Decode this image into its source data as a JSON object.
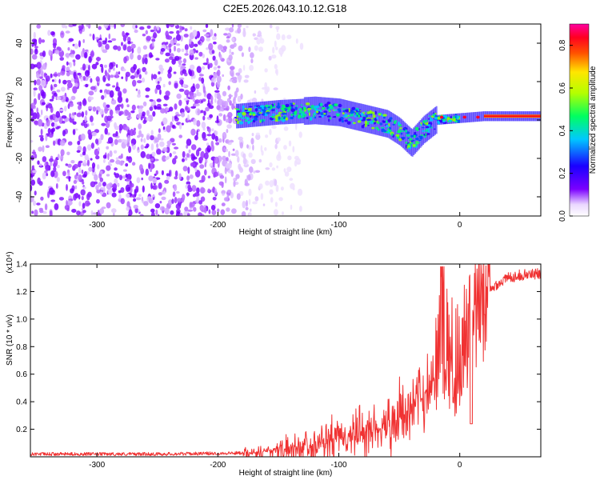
{
  "page_title": "C2E5.2026.043.10.12.G18",
  "chart_data": [
    {
      "type": "heatmap",
      "title": "C2E5.2026.043.10.12.G18",
      "xlabel": "Height of straight line (km)",
      "ylabel": "Frequency (Hz)",
      "xlim": [
        -355,
        67
      ],
      "ylim": [
        -50,
        50
      ],
      "xticks": [
        -300,
        -200,
        -100,
        0
      ],
      "yticks": [
        -40,
        -20,
        0,
        20,
        40
      ],
      "colorbar": {
        "label": "Normalized spectral amplitude",
        "range": [
          0,
          0.9
        ],
        "ticks": [
          0.0,
          0.2,
          0.4,
          0.6,
          0.8
        ],
        "colormap": "rainbow: white, purple, blue, cyan, green, yellow, orange, red, magenta"
      },
      "features": {
        "noise_region_x": [
          -355,
          -130
        ],
        "signal_start_x": -185,
        "signal_center_freq_profile": {
          "x": [
            -185,
            -150,
            -120,
            -100,
            -80,
            -60,
            -50,
            -40,
            -30,
            -20,
            0,
            20,
            40,
            67
          ],
          "y": [
            2,
            4,
            5,
            4,
            1,
            -2,
            -6,
            -12,
            -5,
            0,
            1,
            2,
            2,
            2
          ]
        }
      }
    },
    {
      "type": "line",
      "series": [
        {
          "name": "SNR",
          "color": "#f03232"
        }
      ],
      "xlabel": "Height of straight line (km)",
      "ylabel": "SNR (10 * v/v)",
      "y_multiplier_label": "(x10⁴)",
      "xlim": [
        -355,
        67
      ],
      "ylim": [
        0,
        1.4
      ],
      "xticks": [
        -300,
        -200,
        -100,
        0
      ],
      "yticks": [
        0.2,
        0.4,
        0.6,
        0.8,
        1.0,
        1.2,
        1.4
      ],
      "profile": {
        "x": [
          -355,
          -250,
          -200,
          -170,
          -150,
          -130,
          -110,
          -90,
          -70,
          -50,
          -40,
          -30,
          -20,
          -15,
          -10,
          -5,
          0,
          5,
          10,
          15,
          20,
          30,
          40,
          50,
          67
        ],
        "y": [
          0.02,
          0.02,
          0.025,
          0.03,
          0.05,
          0.08,
          0.11,
          0.15,
          0.2,
          0.28,
          0.35,
          0.45,
          0.6,
          0.9,
          0.8,
          0.7,
          0.75,
          0.85,
          0.95,
          1.05,
          1.15,
          1.25,
          1.3,
          1.32,
          1.33
        ]
      }
    }
  ]
}
